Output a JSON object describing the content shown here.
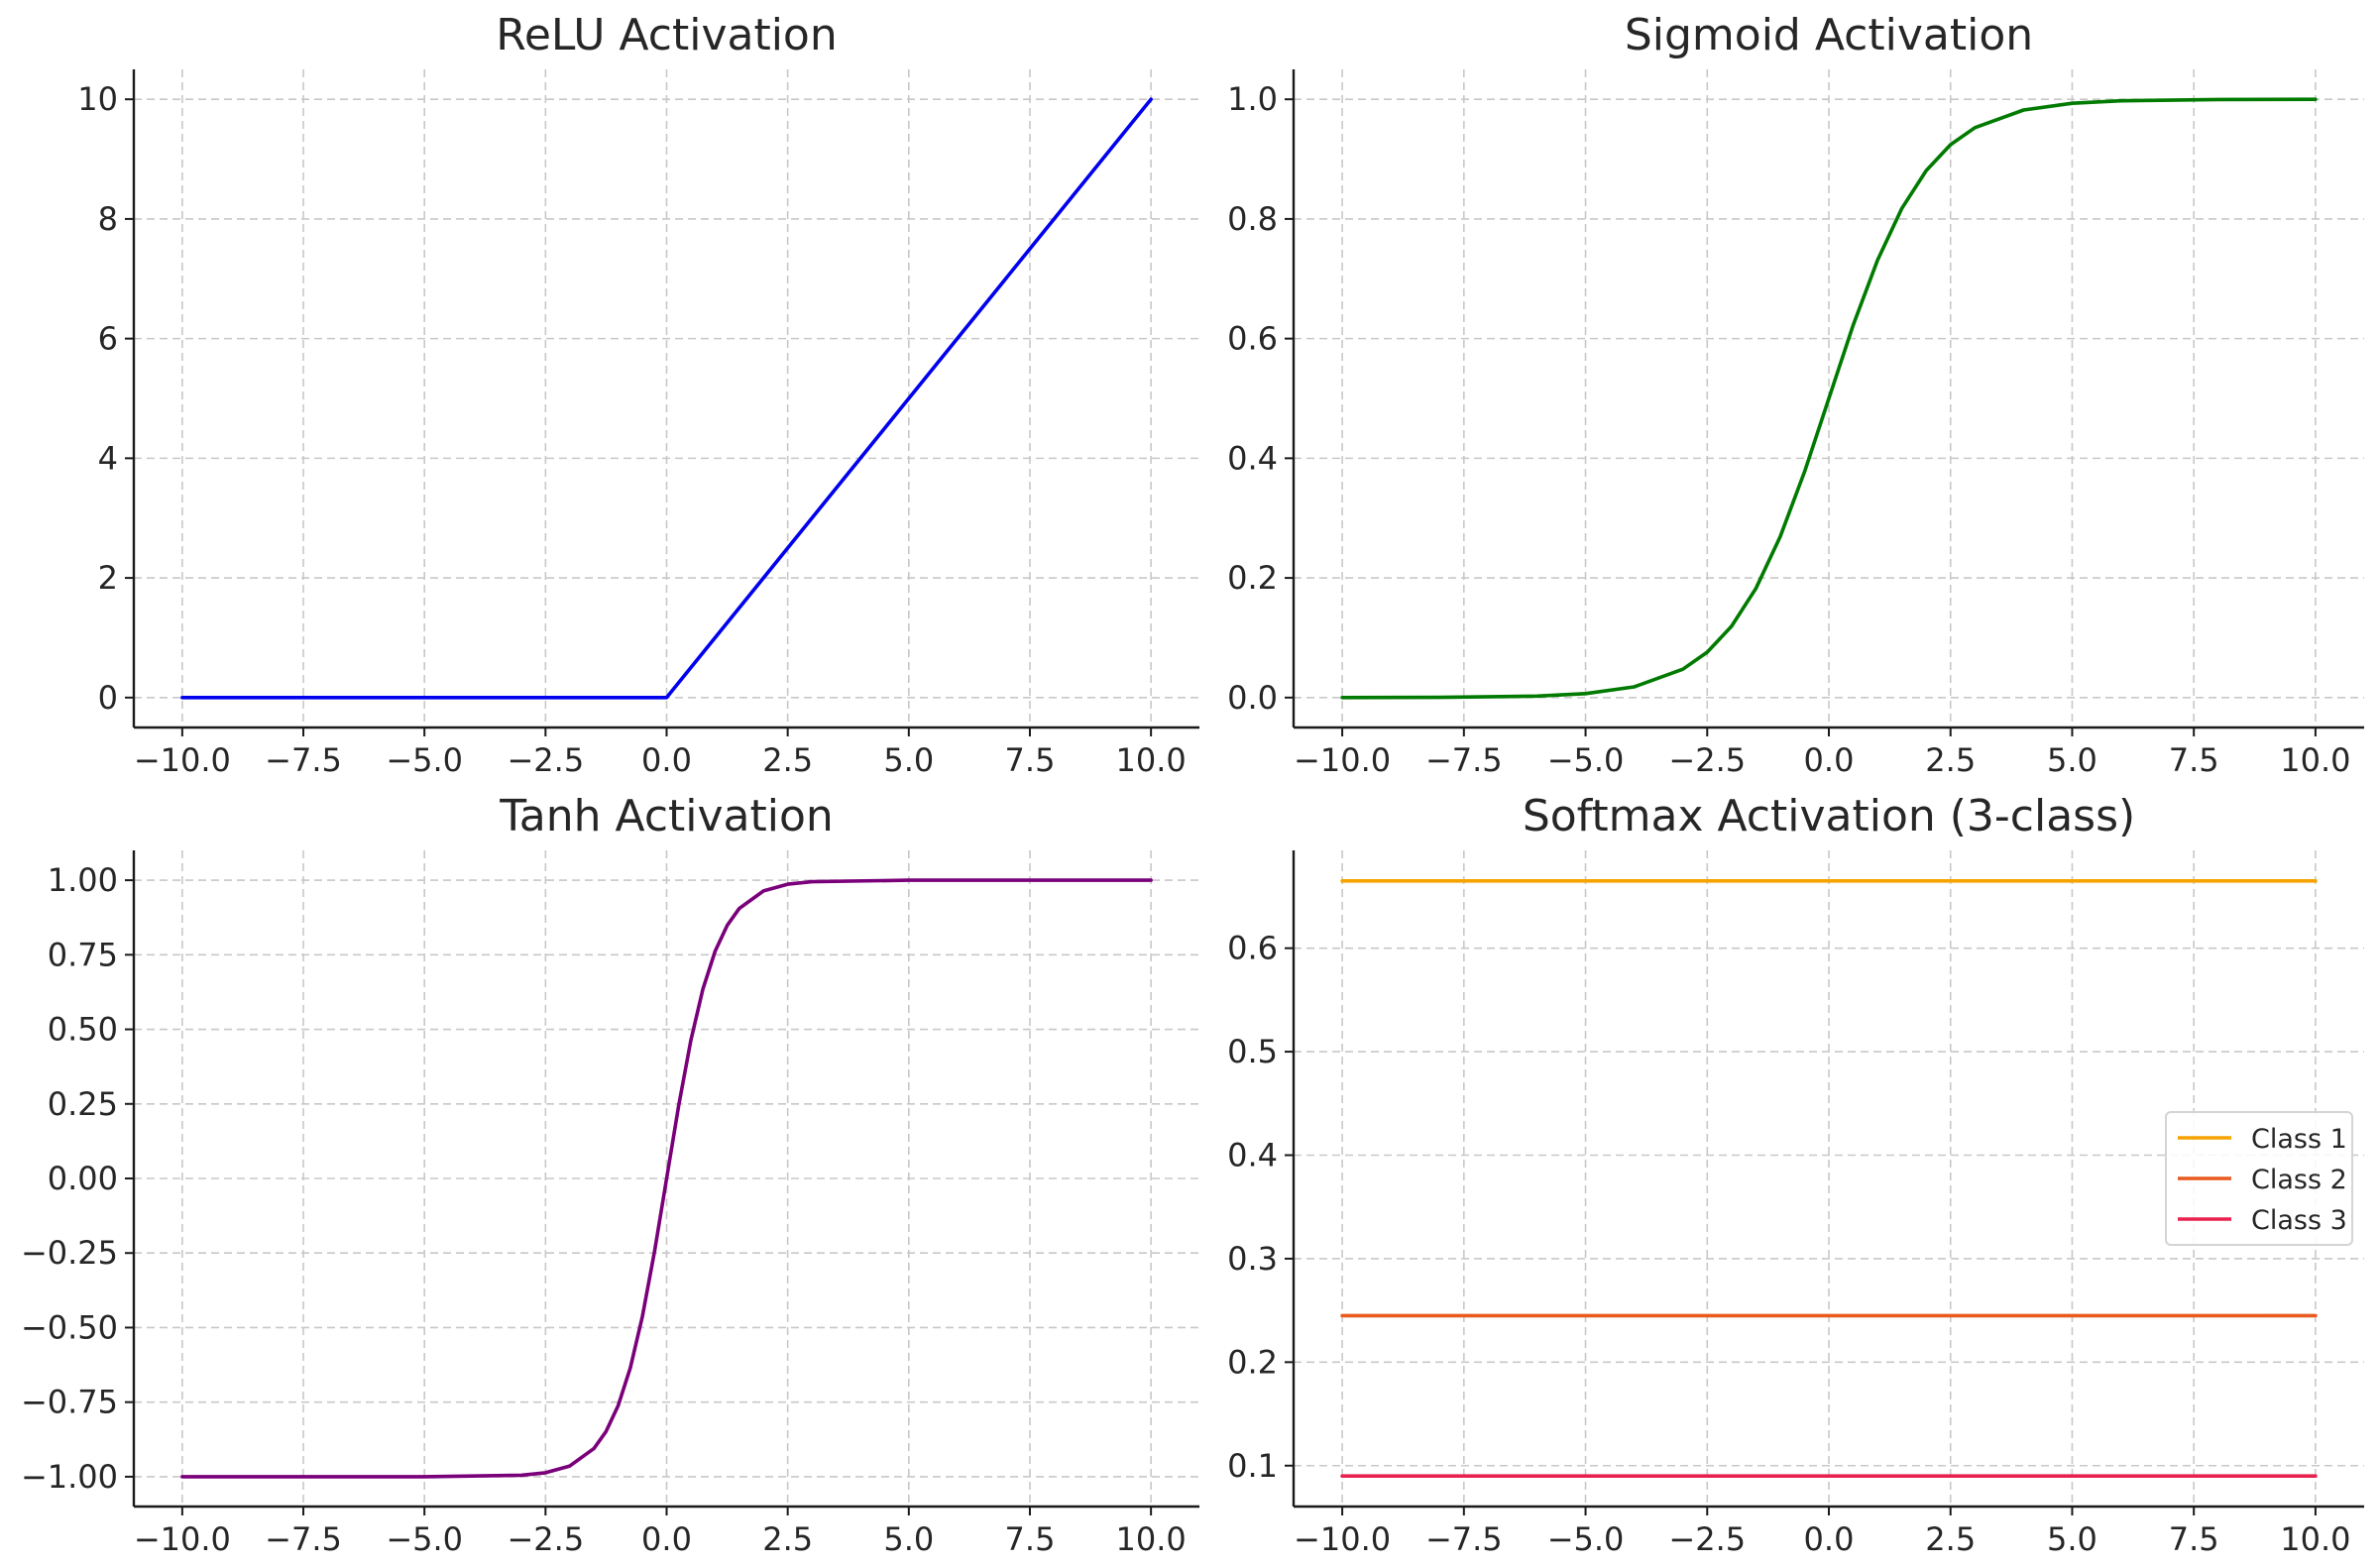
{
  "chart_data": [
    {
      "type": "line",
      "title": "ReLU Activation",
      "xlim": [
        -11.0,
        11.0
      ],
      "ylim": [
        -0.5,
        10.5
      ],
      "xticks": [
        -10.0,
        -7.5,
        -5.0,
        -2.5,
        0.0,
        2.5,
        5.0,
        7.5,
        10.0
      ],
      "xtick_labels": [
        "−10.0",
        "−7.5",
        "−5.0",
        "−2.5",
        "0.0",
        "2.5",
        "5.0",
        "7.5",
        "10.0"
      ],
      "yticks": [
        0,
        2,
        4,
        6,
        8,
        10
      ],
      "ytick_labels": [
        "0",
        "2",
        "4",
        "6",
        "8",
        "10"
      ],
      "grid": true,
      "series": [
        {
          "color": "#0000ee",
          "x": [
            -10,
            0,
            10
          ],
          "y": [
            0,
            0,
            10
          ]
        }
      ]
    },
    {
      "type": "line",
      "title": "Sigmoid Activation",
      "xlim": [
        -11.0,
        11.0
      ],
      "ylim": [
        -0.05,
        1.05
      ],
      "xticks": [
        -10.0,
        -7.5,
        -5.0,
        -2.5,
        0.0,
        2.5,
        5.0,
        7.5,
        10.0
      ],
      "xtick_labels": [
        "−10.0",
        "−7.5",
        "−5.0",
        "−2.5",
        "0.0",
        "2.5",
        "5.0",
        "7.5",
        "10.0"
      ],
      "yticks": [
        0.0,
        0.2,
        0.4,
        0.6,
        0.8,
        1.0
      ],
      "ytick_labels": [
        "0.0",
        "0.2",
        "0.4",
        "0.6",
        "0.8",
        "1.0"
      ],
      "grid": true,
      "series": [
        {
          "color": "#007a00",
          "x": [
            -10,
            -8,
            -6,
            -5,
            -4,
            -3,
            -2.5,
            -2,
            -1.5,
            -1,
            -0.5,
            0,
            0.5,
            1,
            1.5,
            2,
            2.5,
            3,
            4,
            5,
            6,
            8,
            10
          ],
          "y": [
            4.54e-05,
            0.000335,
            0.00247,
            0.00669,
            0.018,
            0.0474,
            0.0759,
            0.1192,
            0.1824,
            0.2689,
            0.3775,
            0.5,
            0.6225,
            0.7311,
            0.8176,
            0.8808,
            0.9241,
            0.9526,
            0.982,
            0.9933,
            0.9975,
            0.9997,
            0.99995
          ]
        }
      ]
    },
    {
      "type": "line",
      "title": "Tanh Activation",
      "xlim": [
        -11.0,
        11.0
      ],
      "ylim": [
        -1.1,
        1.1
      ],
      "xticks": [
        -10.0,
        -7.5,
        -5.0,
        -2.5,
        0.0,
        2.5,
        5.0,
        7.5,
        10.0
      ],
      "xtick_labels": [
        "−10.0",
        "−7.5",
        "−5.0",
        "−2.5",
        "0.0",
        "2.5",
        "5.0",
        "7.5",
        "10.0"
      ],
      "yticks": [
        -1.0,
        -0.75,
        -0.5,
        -0.25,
        0.0,
        0.25,
        0.5,
        0.75,
        1.0
      ],
      "ytick_labels": [
        "−1.00",
        "−0.75",
        "−0.50",
        "−0.25",
        "0.00",
        "0.25",
        "0.50",
        "0.75",
        "1.00"
      ],
      "grid": true,
      "series": [
        {
          "color": "#7a007a",
          "x": [
            -10,
            -5,
            -3,
            -2.5,
            -2,
            -1.5,
            -1.25,
            -1,
            -0.75,
            -0.5,
            -0.25,
            0,
            0.25,
            0.5,
            0.75,
            1,
            1.25,
            1.5,
            2,
            2.5,
            3,
            5,
            10
          ],
          "y": [
            -1.0,
            -0.9999,
            -0.9951,
            -0.9866,
            -0.964,
            -0.9051,
            -0.8483,
            -0.7616,
            -0.6351,
            -0.4621,
            -0.2449,
            0.0,
            0.2449,
            0.4621,
            0.6351,
            0.7616,
            0.8483,
            0.9051,
            0.964,
            0.9866,
            0.9951,
            0.9999,
            1.0
          ]
        }
      ]
    },
    {
      "type": "line",
      "title": "Softmax Activation (3-class)",
      "xlim": [
        -11.0,
        11.0
      ],
      "ylim": [
        0.0605,
        0.6945
      ],
      "xticks": [
        -10.0,
        -7.5,
        -5.0,
        -2.5,
        0.0,
        2.5,
        5.0,
        7.5,
        10.0
      ],
      "xtick_labels": [
        "−10.0",
        "−7.5",
        "−5.0",
        "−2.5",
        "0.0",
        "2.5",
        "5.0",
        "7.5",
        "10.0"
      ],
      "yticks": [
        0.1,
        0.2,
        0.3,
        0.4,
        0.5,
        0.6
      ],
      "ytick_labels": [
        "0.1",
        "0.2",
        "0.3",
        "0.4",
        "0.5",
        "0.6"
      ],
      "grid": true,
      "legend_placement": "center-right",
      "series": [
        {
          "name": "Class 1",
          "color": "#f5a300",
          "x": [
            -10,
            10
          ],
          "y": [
            0.665,
            0.665
          ]
        },
        {
          "name": "Class 2",
          "color": "#e85a1e",
          "x": [
            -10,
            10
          ],
          "y": [
            0.245,
            0.245
          ]
        },
        {
          "name": "Class 3",
          "color": "#e8224f",
          "x": [
            -10,
            10
          ],
          "y": [
            0.09,
            0.09
          ]
        }
      ]
    }
  ]
}
